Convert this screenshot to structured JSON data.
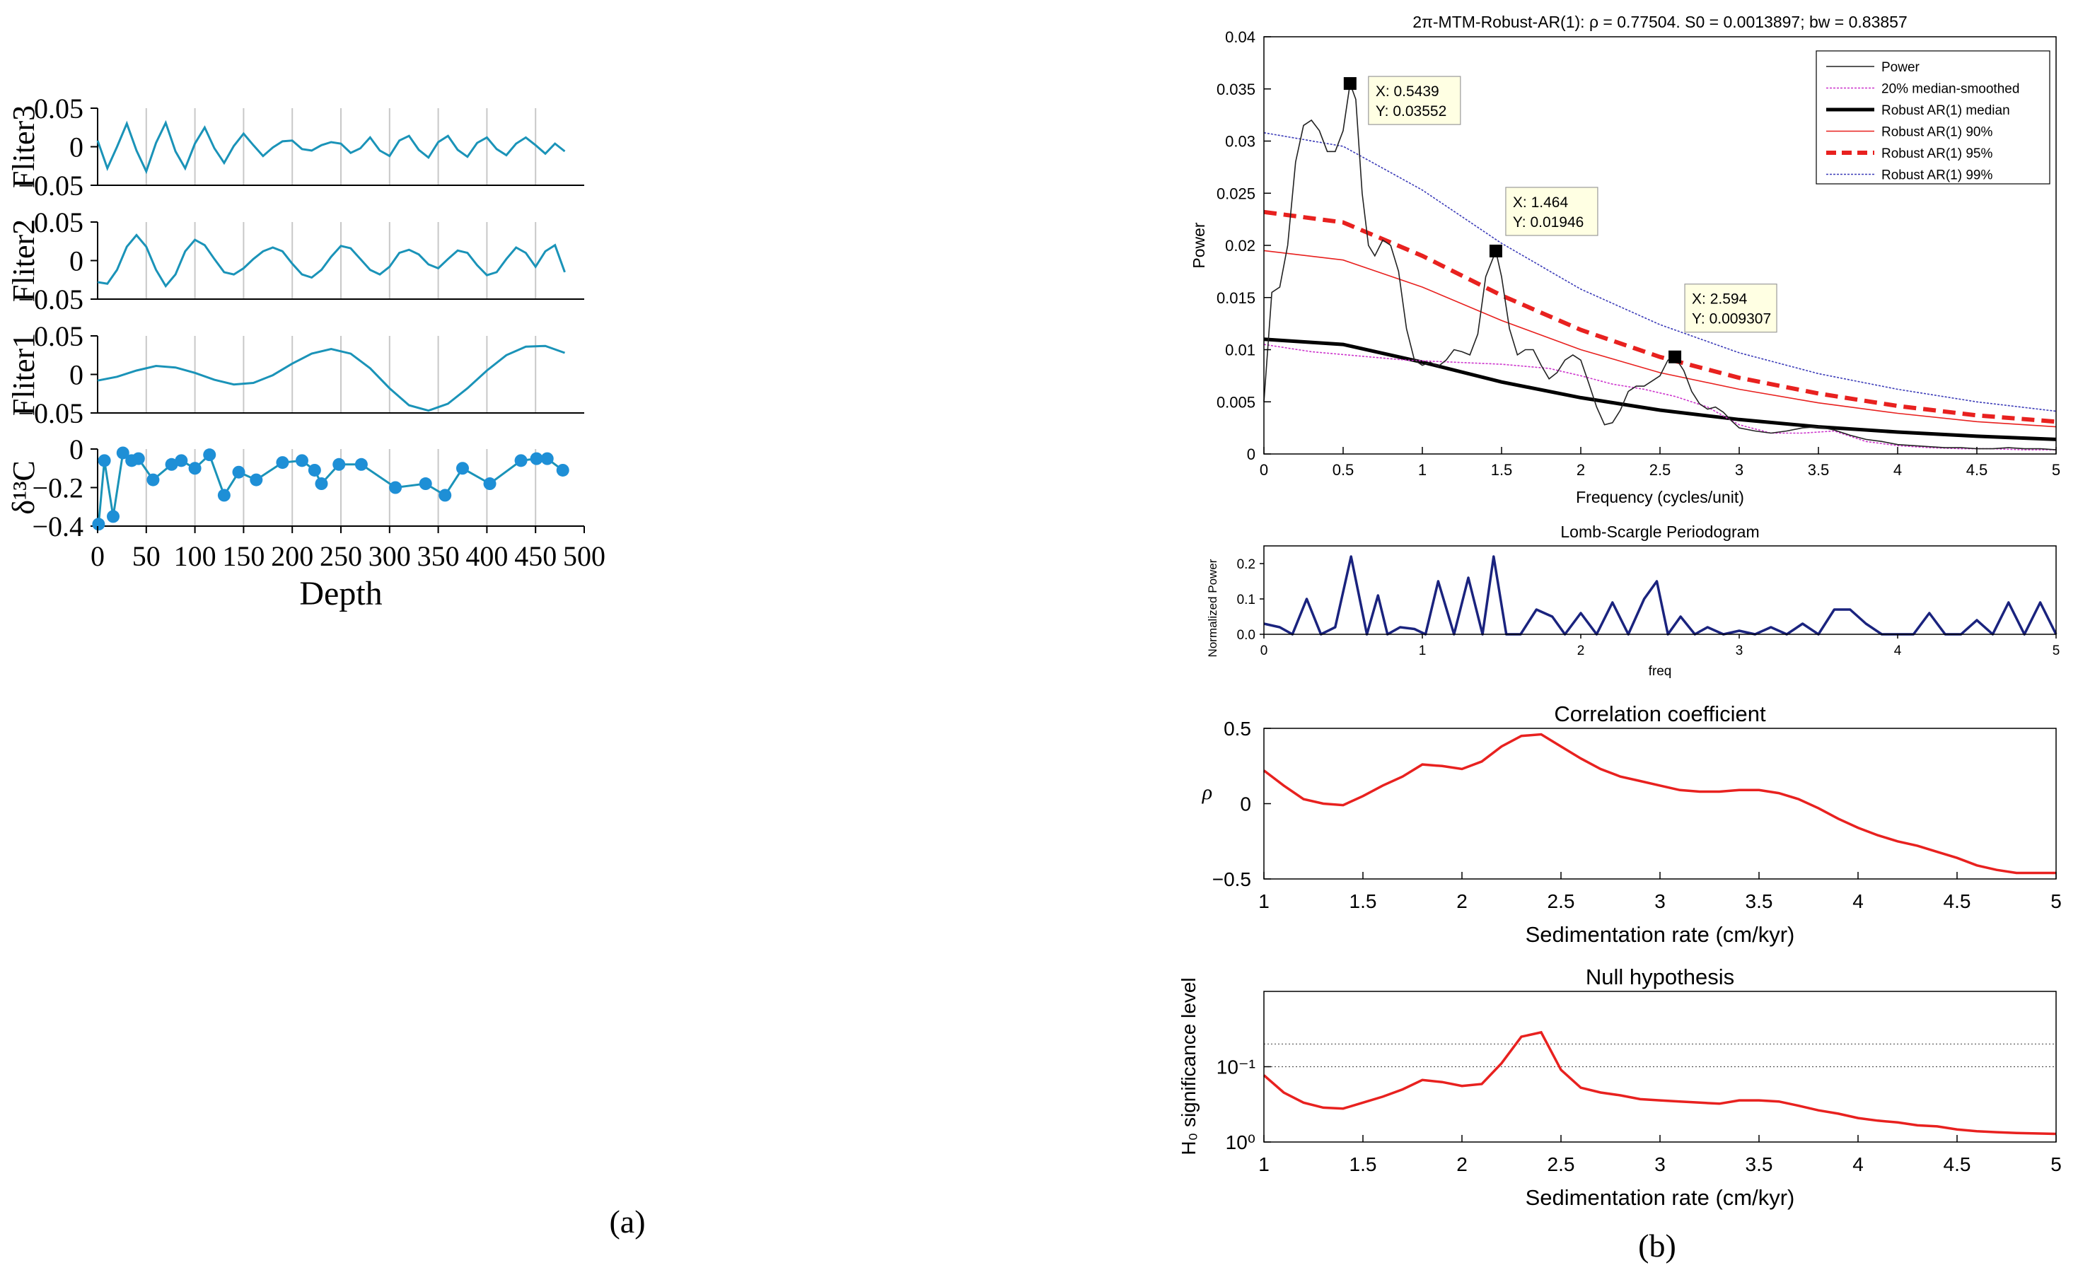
{
  "panel_labels": {
    "a": "(a)",
    "b": "(b)"
  },
  "colors": {
    "teal": "#1a93b8",
    "dot": "#1e8fd6",
    "red": "#e8211f",
    "navy": "#1a237e",
    "grid": "#c8c8c8",
    "magenta": "#cc33cc",
    "blue99": "#3b3bb8"
  },
  "chart_data": [
    {
      "id": "filter3",
      "type": "line",
      "ylabel": "Fliter3",
      "xlim": [
        0,
        500
      ],
      "ylim": [
        -0.05,
        0.05
      ],
      "yticks": [
        "0.05",
        "0",
        "−0.05"
      ],
      "x": [
        0,
        10,
        20,
        30,
        40,
        50,
        60,
        70,
        80,
        90,
        100,
        110,
        120,
        130,
        140,
        150,
        160,
        170,
        180,
        190,
        200,
        210,
        220,
        230,
        240,
        250,
        260,
        270,
        280,
        290,
        300,
        310,
        320,
        330,
        340,
        350,
        360,
        370,
        380,
        390,
        400,
        410,
        420,
        430,
        440,
        450,
        460,
        470,
        480
      ],
      "values": [
        0.008,
        -0.028,
        0.0,
        0.03,
        -0.005,
        -0.032,
        0.005,
        0.031,
        -0.006,
        -0.028,
        0.004,
        0.025,
        -0.002,
        -0.021,
        0.001,
        0.017,
        0.002,
        -0.012,
        -0.001,
        0.007,
        0.008,
        -0.003,
        -0.005,
        0.002,
        0.006,
        0.004,
        -0.008,
        -0.002,
        0.012,
        -0.005,
        -0.012,
        0.008,
        0.014,
        -0.004,
        -0.014,
        0.006,
        0.014,
        -0.004,
        -0.013,
        0.005,
        0.012,
        -0.003,
        -0.011,
        0.004,
        0.012,
        0.002,
        -0.009,
        0.004,
        -0.006
      ]
    },
    {
      "id": "filter2",
      "type": "line",
      "ylabel": "Fliter2",
      "xlim": [
        0,
        500
      ],
      "ylim": [
        -0.05,
        0.05
      ],
      "yticks": [
        "0.05",
        "0",
        "−0.05"
      ],
      "x": [
        0,
        10,
        20,
        30,
        40,
        50,
        60,
        70,
        80,
        90,
        100,
        110,
        120,
        130,
        140,
        150,
        160,
        170,
        180,
        190,
        200,
        210,
        220,
        230,
        240,
        250,
        260,
        270,
        280,
        290,
        300,
        310,
        320,
        330,
        340,
        350,
        360,
        370,
        380,
        390,
        400,
        410,
        420,
        430,
        440,
        450,
        460,
        470,
        480
      ],
      "values": [
        -0.028,
        -0.03,
        -0.012,
        0.018,
        0.033,
        0.018,
        -0.012,
        -0.033,
        -0.018,
        0.012,
        0.027,
        0.02,
        0.002,
        -0.015,
        -0.018,
        -0.01,
        0.002,
        0.012,
        0.017,
        0.012,
        -0.004,
        -0.018,
        -0.022,
        -0.012,
        0.005,
        0.019,
        0.016,
        0.002,
        -0.012,
        -0.018,
        -0.008,
        0.01,
        0.014,
        0.008,
        -0.005,
        -0.01,
        0.002,
        0.013,
        0.01,
        -0.006,
        -0.019,
        -0.015,
        0.002,
        0.017,
        0.01,
        -0.008,
        0.012,
        0.02,
        -0.015
      ]
    },
    {
      "id": "filter1",
      "type": "line",
      "ylabel": "Fliter1",
      "xlim": [
        0,
        500
      ],
      "ylim": [
        -0.05,
        0.05
      ],
      "yticks": [
        "0.05",
        "0",
        "−0.05"
      ],
      "x": [
        0,
        20,
        40,
        60,
        80,
        100,
        120,
        140,
        160,
        180,
        200,
        220,
        240,
        260,
        280,
        300,
        320,
        340,
        360,
        380,
        400,
        420,
        440,
        460,
        480
      ],
      "values": [
        -0.008,
        -0.003,
        0.005,
        0.011,
        0.009,
        0.002,
        -0.007,
        -0.013,
        -0.011,
        -0.001,
        0.014,
        0.027,
        0.033,
        0.027,
        0.008,
        -0.018,
        -0.04,
        -0.047,
        -0.038,
        -0.018,
        0.005,
        0.025,
        0.036,
        0.037,
        0.028
      ]
    },
    {
      "id": "d13c",
      "type": "line",
      "ylabel": "δ¹³C",
      "xlabel": "Depth",
      "xlim": [
        0,
        500
      ],
      "ylim": [
        -0.4,
        0
      ],
      "yticks": [
        "0",
        "−0.2",
        "−0.4"
      ],
      "xticks": [
        "0",
        "50",
        "100",
        "150",
        "200",
        "250",
        "300",
        "350",
        "400",
        "450",
        "500"
      ],
      "x": [
        1,
        7,
        16,
        26,
        35,
        42,
        57,
        76,
        86,
        100,
        115,
        130,
        145,
        163,
        190,
        210,
        223,
        230,
        248,
        271,
        306,
        337,
        357,
        375,
        403,
        435,
        451,
        462,
        478
      ],
      "values": [
        -0.39,
        -0.06,
        -0.35,
        -0.02,
        -0.06,
        -0.05,
        -0.16,
        -0.08,
        -0.06,
        -0.1,
        -0.03,
        -0.24,
        -0.12,
        -0.16,
        -0.07,
        -0.06,
        -0.11,
        -0.18,
        -0.08,
        -0.08,
        -0.2,
        -0.18,
        -0.24,
        -0.1,
        -0.18,
        -0.06,
        -0.05,
        -0.05,
        -0.11
      ]
    },
    {
      "id": "mtm",
      "type": "line",
      "title": "2π-MTM-Robust-AR(1): ρ = 0.77504. S0 = 0.0013897; bw = 0.83857",
      "xlabel": "Frequency (cycles/unit)",
      "ylabel": "Power",
      "xlim": [
        0,
        5
      ],
      "ylim": [
        0,
        0.04
      ],
      "xticks": [
        "0",
        "0.5",
        "1",
        "1.5",
        "2",
        "2.5",
        "3",
        "3.5",
        "4",
        "4.5",
        "5"
      ],
      "yticks": [
        "0",
        "0.005",
        "0.01",
        "0.015",
        "0.02",
        "0.025",
        "0.03",
        "0.035",
        "0.04"
      ],
      "legend": [
        "Power",
        "20% median-smoothed",
        "Robust AR(1) median",
        "Robust AR(1) 90%",
        "Robust AR(1) 95%",
        "Robust AR(1) 99%"
      ],
      "legend_position": "top-right",
      "annotations": [
        {
          "x": 0.5439,
          "y": 0.03552,
          "label_x": "X: 0.5439",
          "label_y": "Y: 0.03552"
        },
        {
          "x": 1.464,
          "y": 0.01946,
          "label_x": "X: 1.464",
          "label_y": "Y: 0.01946"
        },
        {
          "x": 2.594,
          "y": 0.009307,
          "label_x": "X: 2.594",
          "label_y": "Y: 0.009307"
        }
      ],
      "power": {
        "x": [
          0,
          0.05,
          0.1,
          0.15,
          0.2,
          0.25,
          0.3,
          0.35,
          0.4,
          0.45,
          0.5,
          0.5439,
          0.58,
          0.62,
          0.66,
          0.7,
          0.75,
          0.8,
          0.85,
          0.9,
          0.95,
          1.0,
          1.05,
          1.1,
          1.15,
          1.2,
          1.25,
          1.3,
          1.35,
          1.4,
          1.464,
          1.5,
          1.55,
          1.6,
          1.65,
          1.7,
          1.75,
          1.8,
          1.85,
          1.9,
          1.95,
          2.0,
          2.05,
          2.1,
          2.15,
          2.2,
          2.25,
          2.3,
          2.35,
          2.4,
          2.45,
          2.5,
          2.55,
          2.594,
          2.65,
          2.7,
          2.75,
          2.8,
          2.85,
          2.9,
          2.95,
          3.0,
          3.1,
          3.2,
          3.3,
          3.4,
          3.5,
          3.6,
          3.7,
          3.8,
          3.9,
          4.0,
          4.1,
          4.2,
          4.3,
          4.4,
          4.5,
          4.6,
          4.7,
          4.8,
          4.9,
          5.0
        ],
        "values": [
          0.005,
          0.0155,
          0.016,
          0.02,
          0.028,
          0.0315,
          0.032,
          0.031,
          0.029,
          0.029,
          0.031,
          0.03552,
          0.034,
          0.025,
          0.02,
          0.019,
          0.0205,
          0.02,
          0.0175,
          0.012,
          0.009,
          0.0085,
          0.0088,
          0.0084,
          0.009,
          0.01,
          0.0098,
          0.0095,
          0.0115,
          0.017,
          0.01946,
          0.017,
          0.012,
          0.0095,
          0.01,
          0.01,
          0.0085,
          0.0072,
          0.0078,
          0.009,
          0.0095,
          0.009,
          0.0068,
          0.0045,
          0.0028,
          0.003,
          0.0042,
          0.006,
          0.0065,
          0.0065,
          0.007,
          0.0075,
          0.009,
          0.009307,
          0.008,
          0.006,
          0.0048,
          0.0043,
          0.0045,
          0.004,
          0.0032,
          0.0025,
          0.0022,
          0.002,
          0.0022,
          0.0025,
          0.0026,
          0.0023,
          0.0018,
          0.0014,
          0.0012,
          0.0009,
          0.0008,
          0.0007,
          0.0006,
          0.0006,
          0.0005,
          0.0005,
          0.0006,
          0.0005,
          0.0005,
          0.0004
        ]
      },
      "median_smoothed": {
        "x": [
          0,
          0.3,
          0.6,
          0.9,
          1.2,
          1.5,
          1.8,
          2.0,
          2.2,
          2.4,
          2.6,
          2.8,
          3.0,
          3.2,
          3.4,
          3.6,
          3.8,
          4.0,
          4.2,
          4.4,
          4.6,
          4.8,
          5.0
        ],
        "values": [
          0.0105,
          0.0098,
          0.0094,
          0.009,
          0.0088,
          0.0086,
          0.0082,
          0.0075,
          0.0067,
          0.0062,
          0.0055,
          0.0045,
          0.0028,
          0.002,
          0.002,
          0.0022,
          0.0012,
          0.0008,
          0.0006,
          0.0005,
          0.0005,
          0.0004,
          0.0004
        ]
      },
      "ar_median": {
        "x": [
          0,
          0.5,
          1,
          1.5,
          2,
          2.5,
          3,
          3.5,
          4,
          4.5,
          5
        ],
        "values": [
          0.011,
          0.0105,
          0.0088,
          0.0069,
          0.0054,
          0.0042,
          0.0033,
          0.0026,
          0.0021,
          0.0017,
          0.0014
        ]
      },
      "ar_90": {
        "x": [
          0,
          0.5,
          1,
          1.5,
          2,
          2.5,
          3,
          3.5,
          4,
          4.5,
          5
        ],
        "values": [
          0.0195,
          0.0186,
          0.016,
          0.0128,
          0.01,
          0.0078,
          0.0062,
          0.0049,
          0.0039,
          0.0031,
          0.0026
        ]
      },
      "ar_95": {
        "x": [
          0,
          0.5,
          1,
          1.5,
          2,
          2.5,
          3,
          3.5,
          4,
          4.5,
          5
        ],
        "values": [
          0.0232,
          0.0222,
          0.019,
          0.0152,
          0.0119,
          0.0093,
          0.0073,
          0.0058,
          0.0046,
          0.0037,
          0.0031
        ]
      },
      "ar_99": {
        "x": [
          0,
          0.5,
          1,
          1.5,
          2,
          2.5,
          3,
          3.5,
          4,
          4.5,
          5
        ],
        "values": [
          0.0308,
          0.0295,
          0.0253,
          0.0202,
          0.0158,
          0.0124,
          0.0097,
          0.0077,
          0.0062,
          0.005,
          0.0041
        ]
      }
    },
    {
      "id": "lomb",
      "type": "line",
      "title": "Lomb-Scargle Periodogram",
      "xlabel": "freq",
      "ylabel": "Normalized Power",
      "xlim": [
        0,
        5
      ],
      "ylim": [
        0,
        0.25
      ],
      "xticks": [
        "0",
        "1",
        "2",
        "3",
        "4",
        "5"
      ],
      "yticks": [
        "0.0",
        "0.1",
        "0.2"
      ],
      "x": [
        0,
        0.1,
        0.18,
        0.27,
        0.36,
        0.45,
        0.55,
        0.65,
        0.72,
        0.78,
        0.86,
        0.95,
        1.02,
        1.1,
        1.2,
        1.29,
        1.38,
        1.45,
        1.53,
        1.62,
        1.72,
        1.82,
        1.9,
        2.0,
        2.1,
        2.2,
        2.3,
        2.4,
        2.48,
        2.55,
        2.63,
        2.72,
        2.8,
        2.9,
        3.0,
        3.1,
        3.2,
        3.3,
        3.4,
        3.5,
        3.6,
        3.7,
        3.8,
        3.9,
        4.0,
        4.1,
        4.2,
        4.3,
        4.4,
        4.5,
        4.6,
        4.7,
        4.8,
        4.9,
        5.0
      ],
      "values": [
        0.03,
        0.02,
        0.0,
        0.1,
        0.0,
        0.02,
        0.22,
        0.0,
        0.11,
        0.0,
        0.02,
        0.015,
        0.0,
        0.15,
        0.0,
        0.16,
        0.0,
        0.22,
        0.0,
        0.0,
        0.07,
        0.05,
        0.0,
        0.06,
        0.0,
        0.09,
        0.0,
        0.1,
        0.15,
        0.0,
        0.05,
        0.0,
        0.02,
        0.0,
        0.01,
        0.0,
        0.02,
        0.0,
        0.03,
        0.0,
        0.07,
        0.07,
        0.03,
        0.0,
        0.0,
        0.0,
        0.06,
        0.0,
        0.0,
        0.04,
        0.0,
        0.09,
        0.0,
        0.09,
        0.0
      ]
    },
    {
      "id": "corr",
      "type": "line",
      "title": "Correlation coefficient",
      "xlabel": "Sedimentation rate (cm/kyr)",
      "ylabel": "ρ",
      "xlim": [
        1,
        5
      ],
      "ylim": [
        -0.5,
        0.5
      ],
      "xticks": [
        "1",
        "1.5",
        "2",
        "2.5",
        "3",
        "3.5",
        "4",
        "4.5",
        "5"
      ],
      "yticks": [
        "0.5",
        "0",
        "−0.5"
      ],
      "x": [
        1.0,
        1.1,
        1.2,
        1.3,
        1.4,
        1.5,
        1.6,
        1.7,
        1.8,
        1.9,
        2.0,
        2.1,
        2.2,
        2.3,
        2.4,
        2.5,
        2.6,
        2.7,
        2.8,
        2.9,
        3.0,
        3.1,
        3.2,
        3.3,
        3.4,
        3.5,
        3.6,
        3.7,
        3.8,
        3.9,
        4.0,
        4.1,
        4.2,
        4.3,
        4.4,
        4.5,
        4.6,
        4.7,
        4.8,
        4.9,
        5.0
      ],
      "values": [
        0.22,
        0.12,
        0.03,
        0.0,
        -0.01,
        0.05,
        0.12,
        0.18,
        0.26,
        0.25,
        0.23,
        0.28,
        0.38,
        0.45,
        0.46,
        0.38,
        0.3,
        0.23,
        0.18,
        0.15,
        0.12,
        0.09,
        0.08,
        0.08,
        0.09,
        0.09,
        0.07,
        0.03,
        -0.03,
        -0.1,
        -0.16,
        -0.21,
        -0.25,
        -0.28,
        -0.32,
        -0.36,
        -0.41,
        -0.44,
        -0.46,
        -0.46,
        -0.46
      ]
    },
    {
      "id": "null",
      "type": "line",
      "title": "Null hypothesis",
      "xlabel": "Sedimentation rate (cm/kyr)",
      "ylabel": "H₀ significance level",
      "xlim": [
        1,
        5
      ],
      "ylim_log": [
        1,
        0.01
      ],
      "log_scale": true,
      "xticks": [
        "1",
        "1.5",
        "2",
        "2.5",
        "3",
        "3.5",
        "4",
        "4.5",
        "5"
      ],
      "yticks": [
        "10⁻¹",
        "10⁰"
      ],
      "ref_levels": [
        0.05,
        0.1
      ],
      "x": [
        1.0,
        1.1,
        1.2,
        1.3,
        1.4,
        1.5,
        1.6,
        1.7,
        1.8,
        1.9,
        2.0,
        2.1,
        2.2,
        2.3,
        2.4,
        2.5,
        2.6,
        2.7,
        2.8,
        2.9,
        3.0,
        3.1,
        3.2,
        3.3,
        3.4,
        3.5,
        3.6,
        3.7,
        3.8,
        3.9,
        4.0,
        4.1,
        4.2,
        4.3,
        4.4,
        4.5,
        4.6,
        4.7,
        4.8,
        4.9,
        5.0
      ],
      "values": [
        0.13,
        0.22,
        0.3,
        0.35,
        0.36,
        0.3,
        0.25,
        0.2,
        0.15,
        0.16,
        0.18,
        0.17,
        0.09,
        0.04,
        0.035,
        0.11,
        0.19,
        0.22,
        0.24,
        0.27,
        0.28,
        0.29,
        0.3,
        0.31,
        0.28,
        0.28,
        0.29,
        0.33,
        0.38,
        0.42,
        0.48,
        0.52,
        0.55,
        0.6,
        0.62,
        0.68,
        0.72,
        0.74,
        0.76,
        0.77,
        0.78
      ]
    }
  ]
}
